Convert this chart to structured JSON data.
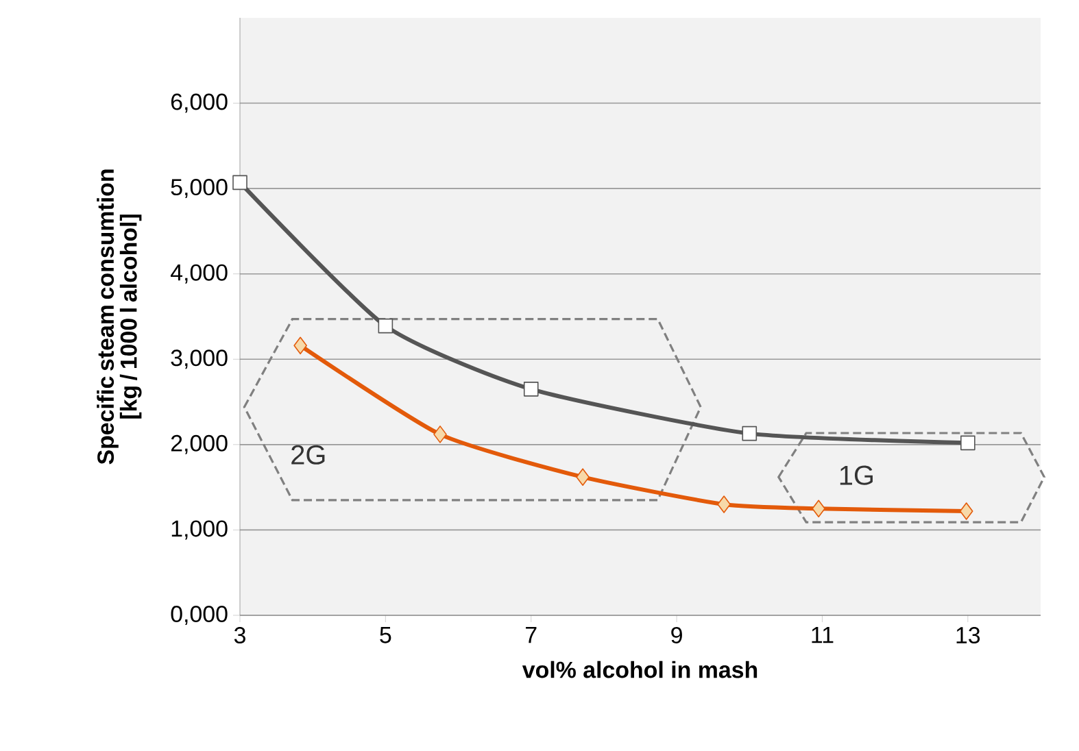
{
  "chart_data": {
    "type": "line",
    "xlabel": "vol% alcohol in mash",
    "ylabel": "Specific steam consumtion [kg / 1000 l alcohol]",
    "xlim": [
      3,
      14
    ],
    "xticks": [
      3,
      5,
      7,
      9,
      11,
      13
    ],
    "ylim": [
      0,
      7000
    ],
    "yticks": [
      {
        "value": 0,
        "label": "0,000"
      },
      {
        "value": 1000,
        "label": "1,000"
      },
      {
        "value": 2000,
        "label": "2,000"
      },
      {
        "value": 3000,
        "label": "3,000"
      },
      {
        "value": 4000,
        "label": "4,000"
      },
      {
        "value": 5000,
        "label": "5,000"
      },
      {
        "value": 6000,
        "label": "6,000"
      }
    ],
    "grid": "y",
    "series": [
      {
        "color": "#555555",
        "marker": "square",
        "x": [
          3,
          5,
          7,
          10,
          13
        ],
        "values": [
          5070,
          3390,
          2650,
          2130,
          2020
        ]
      },
      {
        "color": "#e35a0a",
        "marker": "diamond",
        "x": [
          3.83,
          5.75,
          7.71,
          9.65,
          10.95,
          12.98
        ],
        "values": [
          3160,
          2120,
          1620,
          1300,
          1250,
          1220
        ]
      }
    ],
    "annotations": [
      "2G",
      "1G"
    ]
  }
}
